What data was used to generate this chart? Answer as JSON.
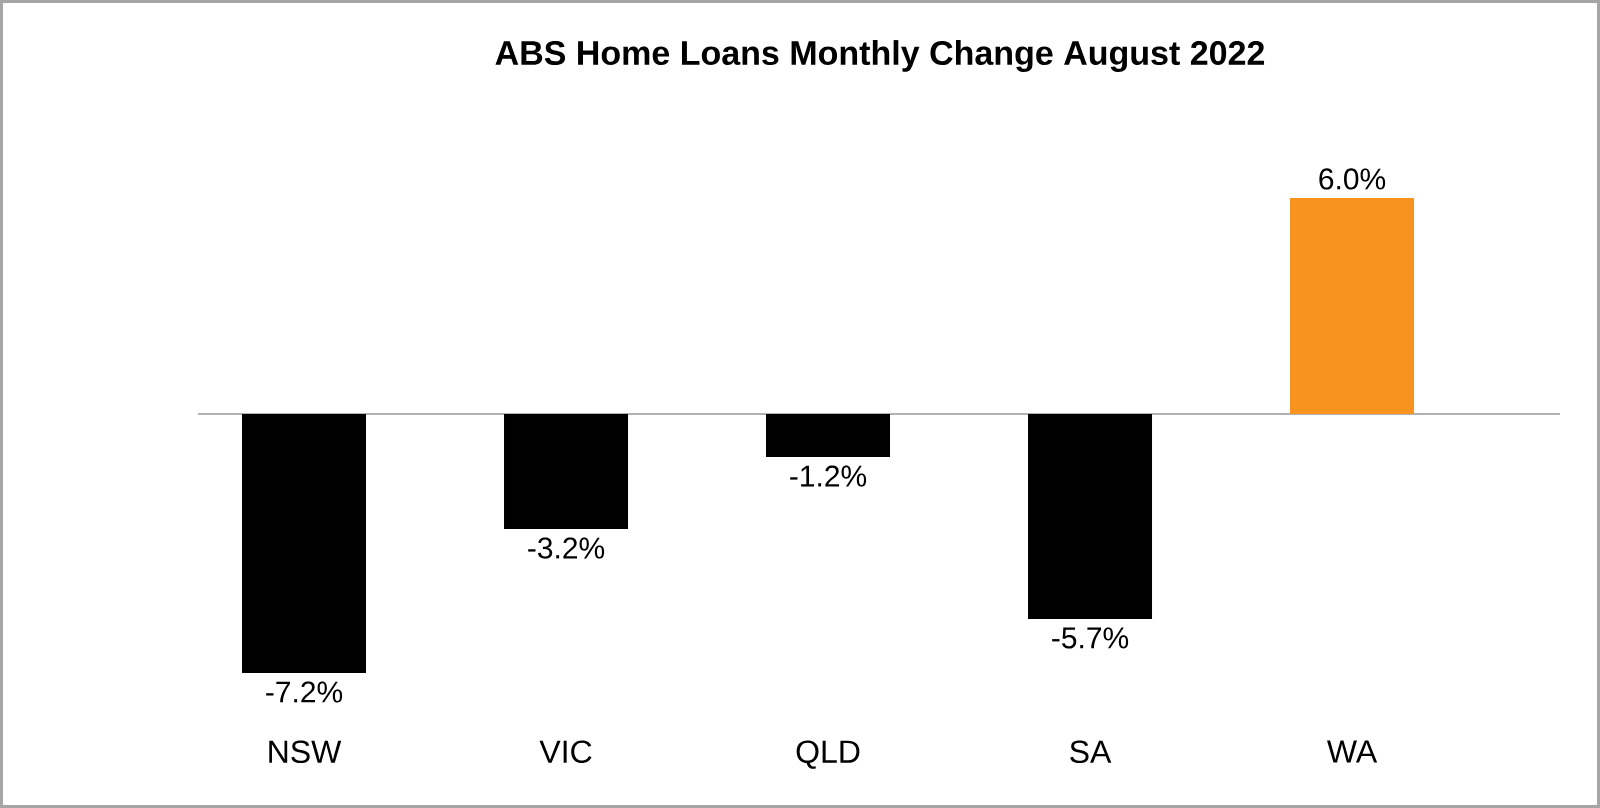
{
  "chart_data": {
    "type": "bar",
    "title": "ABS Home Loans Monthly Change August 2022",
    "categories": [
      "NSW",
      "VIC",
      "QLD",
      "SA",
      "WA"
    ],
    "values": [
      -7.2,
      -3.2,
      -1.2,
      -5.7,
      6.0
    ],
    "colors": [
      "#000000",
      "#000000",
      "#000000",
      "#000000",
      "#f7931e"
    ],
    "value_labels": [
      "-7.2%",
      "-3.2%",
      "-1.2%",
      "-5.7%",
      "6.0%"
    ]
  }
}
